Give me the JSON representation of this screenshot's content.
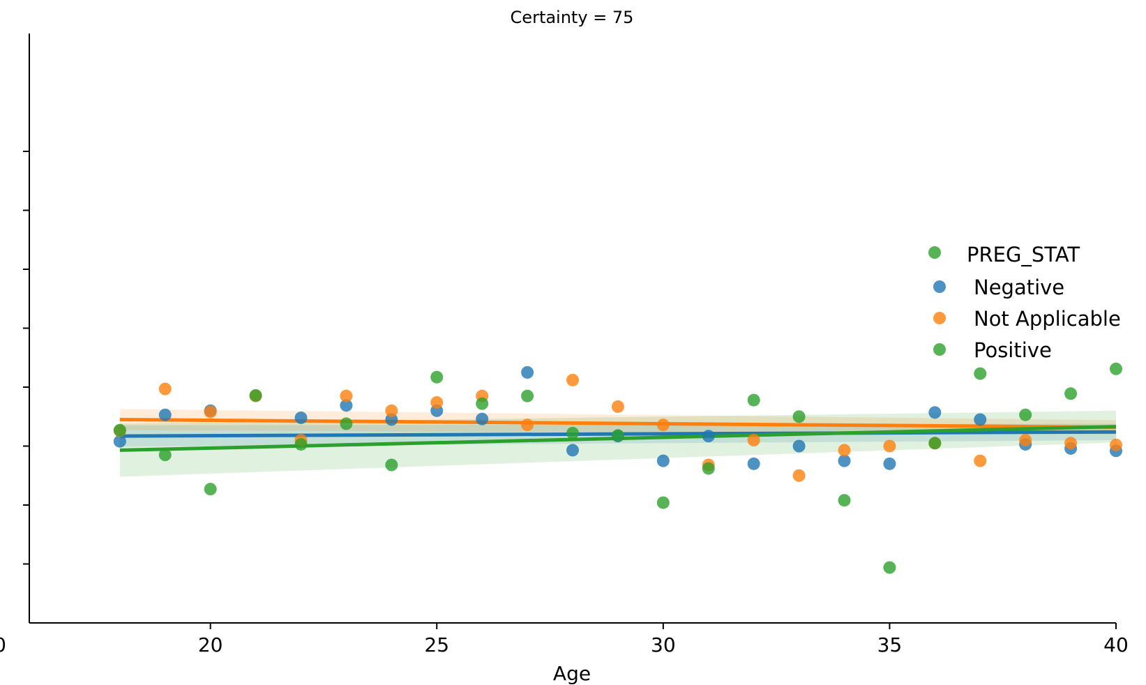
{
  "chart_data": {
    "type": "scatter",
    "title": "Certainty = 75",
    "xlabel": "Age",
    "ylabel": "",
    "xlim": [
      16,
      40
    ],
    "ylim": [
      0,
      10
    ],
    "x_ticks": [
      20,
      25,
      30,
      35,
      40
    ],
    "y_tick_values": [
      1,
      2,
      3,
      4,
      5,
      6,
      7,
      8
    ],
    "partial_tick_label": "0",
    "grid": false,
    "legend": {
      "placement": "right",
      "title": "PREG_STAT",
      "entries": [
        "Negative",
        "Not Applicable",
        "Positive"
      ]
    },
    "series": [
      {
        "name": "Negative",
        "color": "#1f77b4",
        "points": [
          [
            18,
            3.08
          ],
          [
            19,
            3.53
          ],
          [
            20,
            3.6
          ],
          [
            22,
            3.48
          ],
          [
            23,
            3.69
          ],
          [
            24,
            3.45
          ],
          [
            25,
            3.6
          ],
          [
            26,
            3.46
          ],
          [
            27,
            4.25
          ],
          [
            28,
            2.93
          ],
          [
            29,
            3.17
          ],
          [
            30,
            2.75
          ],
          [
            31,
            3.17
          ],
          [
            32,
            2.7
          ],
          [
            33,
            3.0
          ],
          [
            34,
            2.75
          ],
          [
            35,
            2.7
          ],
          [
            36,
            3.57
          ],
          [
            37,
            3.45
          ],
          [
            38,
            3.03
          ],
          [
            39,
            2.96
          ],
          [
            40,
            2.92
          ]
        ],
        "trend": [
          [
            18,
            3.17
          ],
          [
            40,
            3.24
          ]
        ]
      },
      {
        "name": "Not Applicable",
        "color": "#ff7f0e",
        "points": [
          [
            18,
            3.26
          ],
          [
            19,
            3.97
          ],
          [
            20,
            3.58
          ],
          [
            21,
            3.85
          ],
          [
            22,
            3.1
          ],
          [
            23,
            3.85
          ],
          [
            24,
            3.6
          ],
          [
            25,
            3.74
          ],
          [
            26,
            3.85
          ],
          [
            27,
            3.36
          ],
          [
            28,
            4.12
          ],
          [
            29,
            3.67
          ],
          [
            30,
            3.36
          ],
          [
            31,
            2.68
          ],
          [
            32,
            3.1
          ],
          [
            33,
            2.5
          ],
          [
            34,
            2.93
          ],
          [
            35,
            3.0
          ],
          [
            36,
            3.05
          ],
          [
            37,
            2.75
          ],
          [
            38,
            3.1
          ],
          [
            39,
            3.05
          ],
          [
            40,
            3.02
          ]
        ],
        "trend": [
          [
            18,
            3.45
          ],
          [
            40,
            3.32
          ]
        ]
      },
      {
        "name": "Positive",
        "color": "#2ca02c",
        "points": [
          [
            18,
            3.27
          ],
          [
            19,
            2.85
          ],
          [
            20,
            2.27
          ],
          [
            21,
            3.86
          ],
          [
            22,
            3.03
          ],
          [
            23,
            3.38
          ],
          [
            24,
            2.68
          ],
          [
            25,
            4.17
          ],
          [
            26,
            3.72
          ],
          [
            27,
            3.85
          ],
          [
            28,
            3.22
          ],
          [
            29,
            3.18
          ],
          [
            30,
            2.04
          ],
          [
            31,
            2.62
          ],
          [
            32,
            3.78
          ],
          [
            33,
            3.5
          ],
          [
            34,
            2.08
          ],
          [
            35,
            0.94
          ],
          [
            36,
            3.05
          ],
          [
            37,
            4.23
          ],
          [
            38,
            3.53
          ],
          [
            39,
            3.89
          ],
          [
            40,
            4.31
          ]
        ],
        "trend": [
          [
            18,
            2.93
          ],
          [
            40,
            3.33
          ]
        ]
      }
    ]
  }
}
